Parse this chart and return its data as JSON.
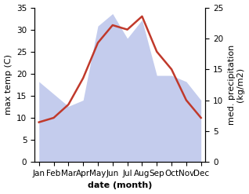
{
  "months": [
    "Jan",
    "Feb",
    "Mar",
    "Apr",
    "May",
    "Jun",
    "Jul",
    "Aug",
    "Sep",
    "Oct",
    "Nov",
    "Dec"
  ],
  "temperature": [
    9,
    10,
    13,
    19,
    27,
    31,
    30,
    33,
    25,
    21,
    14,
    10
  ],
  "precipitation": [
    13,
    11,
    9,
    10,
    22,
    24,
    20,
    23,
    14,
    14,
    13,
    10
  ],
  "temp_color": "#c0392b",
  "precip_color": "#b0bce8",
  "temp_ylim": [
    0,
    35
  ],
  "precip_ylim": [
    0,
    25
  ],
  "xlabel": "date (month)",
  "ylabel_left": "max temp (C)",
  "ylabel_right": "med. precipitation\n(kg/m2)",
  "bg_color": "#ffffff",
  "label_fontsize": 8,
  "tick_fontsize": 7.5
}
